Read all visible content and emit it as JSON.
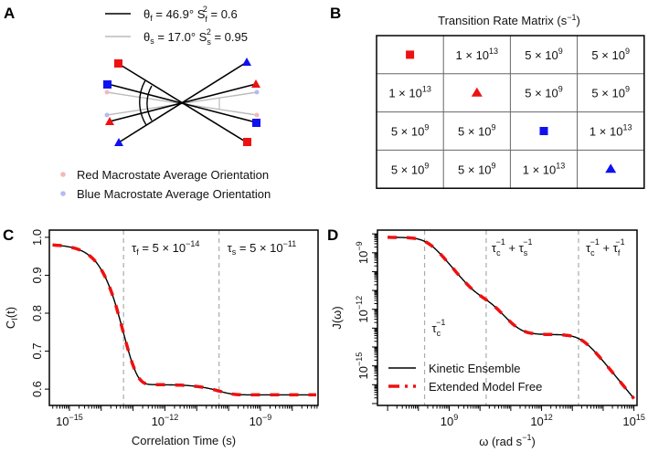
{
  "panel_labels": {
    "a": "A",
    "b": "B",
    "c": "C",
    "d": "D"
  },
  "panel_a": {
    "legend_fast": {
      "theta": "θ",
      "theta_sub": "f",
      "theta_val": " = 46.9°  ",
      "s": "S",
      "s_sub": "f",
      "s_sup": "2",
      "s_val": " = 0.6"
    },
    "legend_slow": {
      "theta": "θ",
      "theta_sub": "s",
      "theta_val": " = 17.0°  ",
      "s": "S",
      "s_sub": "s",
      "s_sup": "2",
      "s_val": " = 0.95"
    },
    "red_avg_label": "Red Macrostate Average Orientation",
    "blue_avg_label": "Blue Macrostate Average Orientation",
    "colors": {
      "red": "#ee1111",
      "blue": "#1111ee",
      "pink": "#f4b8b8",
      "lavender": "#b8b8f4",
      "gray": "#bbbbbb"
    }
  },
  "panel_b": {
    "title": "Transition Rate Matrix (s",
    "title_sup": "−1",
    "title_end": ")",
    "rows": [
      [
        {
          "icon": "red-square"
        },
        {
          "m": "1 × 10",
          "e": "13"
        },
        {
          "m": "5 × 10",
          "e": "9"
        },
        {
          "m": "5 × 10",
          "e": "9"
        }
      ],
      [
        {
          "m": "1 × 10",
          "e": "13"
        },
        {
          "icon": "red-triangle"
        },
        {
          "m": "5 × 10",
          "e": "9"
        },
        {
          "m": "5 × 10",
          "e": "9"
        }
      ],
      [
        {
          "m": "5 × 10",
          "e": "9"
        },
        {
          "m": "5 × 10",
          "e": "9"
        },
        {
          "icon": "blue-square"
        },
        {
          "m": "1 × 10",
          "e": "13"
        }
      ],
      [
        {
          "m": "5 × 10",
          "e": "9"
        },
        {
          "m": "5 × 10",
          "e": "9"
        },
        {
          "m": "1 × 10",
          "e": "13"
        },
        {
          "icon": "blue-triangle"
        }
      ]
    ]
  },
  "chart_data": [
    {
      "type": "line",
      "panel": "C",
      "xlabel": "Correlation Time (s)",
      "ylabel": "C",
      "ylabel_sub": "I",
      "ylabel_end": "(t)",
      "xscale": "log10",
      "xlim_log10": [
        -15.63,
        -7.19
      ],
      "ylim": [
        0.557,
        1.019
      ],
      "xticks_log10": [
        -15,
        -12,
        -9
      ],
      "xtick_labels": [
        {
          "b": "10",
          "e": "−15"
        },
        {
          "b": "10",
          "e": "−12"
        },
        {
          "b": "10",
          "e": "−9"
        }
      ],
      "yticks": [
        0.6,
        0.7,
        0.8,
        0.9,
        1.0
      ],
      "ytick_labels": [
        "0.6",
        "0.7",
        "0.8",
        "0.9",
        "1.0"
      ],
      "model": {
        "S2_final": 0.585,
        "A_slow": 0.027,
        "A_fast": 0.37,
        "tau_f": 5e-14,
        "tau_s": 5e-11
      },
      "vlines_log10": [
        -13.3,
        -10.3
      ],
      "annotations": [
        {
          "t": "τ",
          "sub": "f",
          "mid": " = 5 × 10",
          "sup": "−14"
        },
        {
          "t": "τ",
          "sub": "s",
          "mid": " = 5 × 10",
          "sup": "−11"
        }
      ],
      "series": [
        {
          "name": "Kinetic Ensemble",
          "color": "#000000"
        },
        {
          "name": "Extended Model Free",
          "color": "#ee1111"
        }
      ]
    },
    {
      "type": "line",
      "panel": "D",
      "xlabel": "ω (rad s",
      "xlabel_sup": "−1",
      "xlabel_end": ")",
      "ylabel": "J(ω)",
      "xscale": "log10",
      "yscale": "log10",
      "xlim_log10": [
        6.67,
        15.1
      ],
      "ylim_log10": [
        -17.1,
        -7.8
      ],
      "xtick_labels": [
        {
          "b": "10",
          "e": "9"
        },
        {
          "b": "10",
          "e": "12"
        },
        {
          "b": "10",
          "e": "15"
        }
      ],
      "xticks_log10": [
        9,
        12,
        15
      ],
      "ytick_labels": [
        {
          "b": "10",
          "e": "−9"
        },
        {
          "b": "10",
          "e": "−12"
        },
        {
          "b": "10",
          "e": "−15"
        }
      ],
      "yticks_log10": [
        -9,
        -12,
        -15
      ],
      "model": {
        "tau_c": 5e-09,
        "tau_s": 5e-11,
        "tau_f": 5e-14,
        "S2": 0.57,
        "Sf2": 0.6,
        "scale": 2.3
      },
      "x_range_log10": [
        7,
        15
      ],
      "vlines_log10": [
        8.2,
        10.2,
        13.2
      ],
      "annotations": [
        {
          "a": "τ",
          "asub": "c",
          "asup": "−1"
        },
        {
          "a": "τ",
          "asub": "c",
          "asup": "−1",
          "b": " + τ",
          "bsub": "s",
          "bsup": "−1"
        },
        {
          "a": "τ",
          "asub": "c",
          "asup": "−1",
          "b": " + τ",
          "bsub": "f",
          "bsup": "−1"
        }
      ],
      "legend": [
        "Kinetic Ensemble",
        "Extended Model Free"
      ],
      "legend_position": "bottom-left",
      "series": [
        {
          "name": "Kinetic Ensemble",
          "color": "#000000"
        },
        {
          "name": "Extended Model Free",
          "color": "#ee1111"
        }
      ]
    }
  ]
}
